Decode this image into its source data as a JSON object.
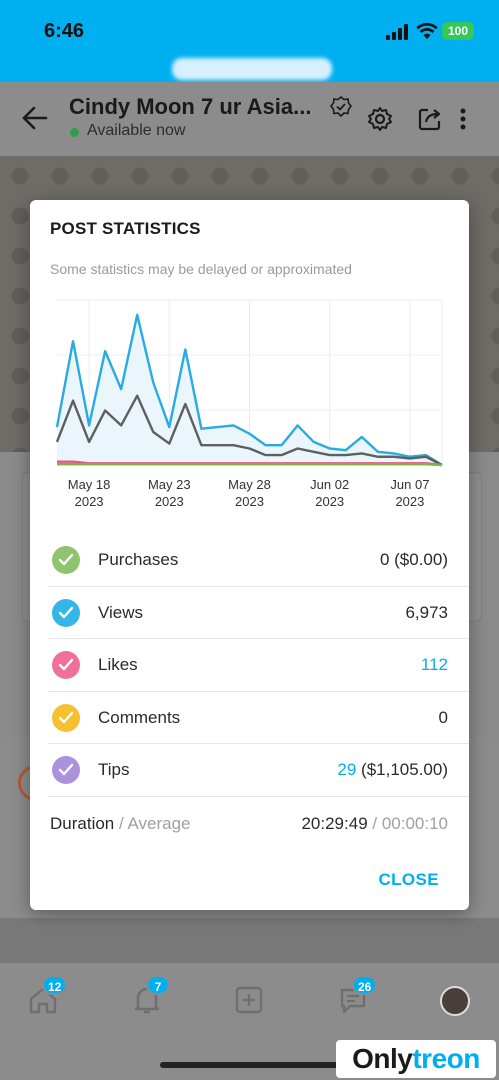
{
  "status_bar": {
    "time": "6:46",
    "battery": "100"
  },
  "header": {
    "title": "Cindy Moon 7 ur Asia...",
    "status": "Available now"
  },
  "modal": {
    "title": "POST STATISTICS",
    "subtitle": "Some statistics may be delayed or approximated",
    "stats": [
      {
        "label": "Purchases",
        "value_main": "",
        "value_rest": "0 ($0.00)",
        "color": "#8fc46e"
      },
      {
        "label": "Views",
        "value_main": "",
        "value_rest": "6,973",
        "color": "#35b6e8"
      },
      {
        "label": "Likes",
        "value_main": "112",
        "value_rest": "",
        "color": "#f0709a"
      },
      {
        "label": "Comments",
        "value_main": "",
        "value_rest": "0",
        "color": "#f7c033"
      },
      {
        "label": "Tips",
        "value_main": "29",
        "value_rest": " ($1,105.00)",
        "color": "#ab92dc"
      }
    ],
    "duration_label": "Duration",
    "average_label": " / Average",
    "duration_value": "20:29:49",
    "average_value": " / 00:00:10",
    "close_label": "CLOSE"
  },
  "chart_data": {
    "type": "line",
    "x_tick_labels": [
      [
        "May 18",
        "2023"
      ],
      [
        "May 23",
        "2023"
      ],
      [
        "May 28",
        "2023"
      ],
      [
        "Jun 02",
        "2023"
      ],
      [
        "Jun 07",
        "2023"
      ]
    ],
    "x_tick_days": [
      2,
      7,
      12,
      17,
      22
    ],
    "x_range": [
      0,
      24
    ],
    "y_range": [
      0,
      1
    ],
    "grid": true,
    "series": [
      {
        "color": "#29abe2",
        "fill": "#eaf6fb",
        "values": [
          0.23,
          0.75,
          0.24,
          0.69,
          0.46,
          0.91,
          0.5,
          0.23,
          0.7,
          0.22,
          0.23,
          0.24,
          0.19,
          0.12,
          0.12,
          0.24,
          0.14,
          0.1,
          0.09,
          0.17,
          0.08,
          0.07,
          0.05,
          0.06,
          0.0
        ]
      },
      {
        "color": "#5f5f5f",
        "values": [
          0.14,
          0.39,
          0.14,
          0.33,
          0.24,
          0.42,
          0.2,
          0.13,
          0.37,
          0.12,
          0.12,
          0.12,
          0.1,
          0.06,
          0.06,
          0.1,
          0.08,
          0.06,
          0.06,
          0.07,
          0.05,
          0.05,
          0.04,
          0.05,
          0.0
        ]
      },
      {
        "color": "#e2577d",
        "values": [
          0.02,
          0.02,
          0.01,
          0.01,
          0.01,
          0.01,
          0.01,
          0.01,
          0.01,
          0.01,
          0.01,
          0.01,
          0.01,
          0.01,
          0.01,
          0.01,
          0.01,
          0.01,
          0.01,
          0.01,
          0.01,
          0.01,
          0.01,
          0.01,
          0.0
        ]
      },
      {
        "color": "#7cb342",
        "values": [
          0.005,
          0.005,
          0.005,
          0.005,
          0.005,
          0.005,
          0.005,
          0.005,
          0.005,
          0.005,
          0.005,
          0.005,
          0.005,
          0.005,
          0.005,
          0.005,
          0.005,
          0.005,
          0.005,
          0.005,
          0.005,
          0.005,
          0.005,
          0.005,
          0.0
        ]
      }
    ]
  },
  "bottom_nav": {
    "home_badge": "12",
    "notifications_badge": "7",
    "messages_badge": "26"
  },
  "watermark": {
    "part1": "Only",
    "part2": "treon"
  }
}
